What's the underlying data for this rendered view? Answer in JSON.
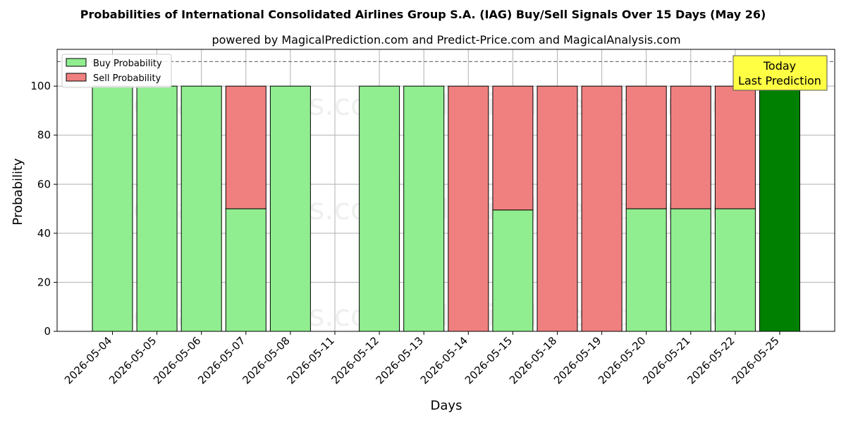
{
  "chart_data": {
    "type": "bar",
    "stacked": true,
    "title": "Probabilities of International Consolidated Airlines Group S.A. (IAG) Buy/Sell Signals Over 15 Days (May 26)",
    "subtitle": "powered by MagicalPrediction.com and Predict-Price.com and MagicalAnalysis.com",
    "xlabel": "Days",
    "ylabel": "Probability",
    "ylim": [
      0,
      115
    ],
    "yticks": [
      0,
      20,
      40,
      60,
      80,
      100
    ],
    "grid": true,
    "legend_position": "top-left",
    "reference_line": 110,
    "categories": [
      "2026-05-04",
      "2026-05-05",
      "2026-05-06",
      "2026-05-07",
      "2026-05-08",
      "2026-05-11",
      "2026-05-12",
      "2026-05-13",
      "2026-05-14",
      "2026-05-15",
      "2026-05-18",
      "2026-05-19",
      "2026-05-20",
      "2026-05-21",
      "2026-05-22",
      "2026-05-25"
    ],
    "series": [
      {
        "name": "Buy Probability",
        "color": "#90ee90",
        "values": [
          100,
          100,
          100,
          50,
          100,
          0,
          100,
          100,
          0,
          49.5,
          0,
          0,
          50,
          50,
          50,
          100
        ]
      },
      {
        "name": "Sell Probability",
        "color": "#f08080",
        "values": [
          0,
          0,
          0,
          50,
          0,
          0,
          0,
          0,
          100,
          50.5,
          100,
          100,
          50,
          50,
          50,
          0
        ]
      }
    ],
    "highlight": {
      "category": "2026-05-25",
      "color": "#008000",
      "label_line1": "Today",
      "label_line2": "Last Prediction",
      "box_color": "#ffff44"
    },
    "watermarks": [
      "MagicalAnalysis.com",
      "MagicalPrediction.com"
    ]
  }
}
